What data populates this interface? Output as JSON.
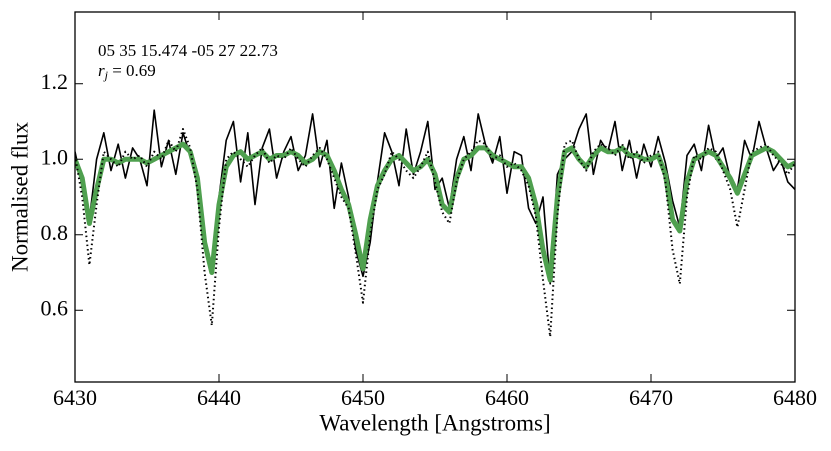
{
  "chart_data": {
    "type": "line",
    "xlabel": "Wavelength [Angstroms]",
    "ylabel": "Normalised flux",
    "annotations": [
      {
        "text": "05 35 15.474 -05 27 22.73"
      },
      {
        "symbol": "r",
        "subscript": "j",
        "text": " = 0.69"
      }
    ],
    "xlim": [
      6430,
      6480
    ],
    "ylim": [
      0.41,
      1.39
    ],
    "xticks": [
      6430,
      6440,
      6450,
      6460,
      6470,
      6480
    ],
    "yticks": [
      0.6,
      0.8,
      {
        "value": 1,
        "label": "1.0"
      },
      1.2
    ],
    "grid": false,
    "x": [
      6430,
      6430.5,
      6431,
      6431.5,
      6432,
      6432.5,
      6433,
      6433.5,
      6434,
      6434.5,
      6435,
      6435.5,
      6436,
      6436.5,
      6437,
      6437.5,
      6438,
      6438.5,
      6439,
      6439.5,
      6440,
      6440.5,
      6441,
      6441.5,
      6442,
      6442.5,
      6443,
      6443.5,
      6444,
      6444.5,
      6445,
      6445.5,
      6446,
      6446.5,
      6447,
      6447.5,
      6448,
      6448.5,
      6449,
      6449.5,
      6450,
      6450.5,
      6451,
      6451.5,
      6452,
      6452.5,
      6453,
      6453.5,
      6454,
      6454.5,
      6455,
      6455.5,
      6456,
      6456.5,
      6457,
      6457.5,
      6458,
      6458.5,
      6459,
      6459.5,
      6460,
      6460.5,
      6461,
      6461.5,
      6462,
      6462.5,
      6463,
      6463.5,
      6464,
      6464.5,
      6465,
      6465.5,
      6466,
      6466.5,
      6467,
      6467.5,
      6468,
      6468.5,
      6469,
      6469.5,
      6470,
      6470.5,
      6471,
      6471.5,
      6472,
      6472.5,
      6473,
      6473.5,
      6474,
      6474.5,
      6475,
      6475.5,
      6476,
      6476.5,
      6477,
      6477.5,
      6478,
      6478.5,
      6479,
      6479.5,
      6480
    ],
    "series": [
      {
        "color": "#000000",
        "width": 1.6,
        "dash": "solid",
        "values": [
          1.02,
          0.93,
          0.84,
          1.0,
          1.07,
          0.97,
          1.04,
          0.95,
          1.03,
          1.0,
          0.93,
          1.13,
          0.98,
          1.05,
          0.96,
          1.07,
          1.01,
          0.93,
          0.8,
          0.7,
          0.9,
          1.05,
          1.1,
          0.94,
          1.07,
          0.88,
          1.03,
          1.08,
          0.95,
          1.02,
          1.06,
          0.97,
          1.01,
          1.12,
          0.98,
          1.05,
          0.87,
          0.99,
          0.9,
          0.76,
          0.69,
          0.78,
          0.94,
          1.07,
          1.02,
          0.93,
          1.08,
          0.96,
          1.02,
          1.1,
          0.92,
          0.95,
          0.87,
          1.0,
          1.06,
          0.97,
          1.12,
          1.04,
          0.99,
          1.06,
          0.91,
          1.02,
          1.01,
          0.87,
          0.83,
          0.9,
          0.67,
          0.96,
          1.0,
          1.02,
          1.08,
          1.12,
          0.96,
          1.05,
          1.02,
          1.1,
          0.97,
          1.05,
          0.95,
          1.04,
          0.98,
          1.06,
          0.99,
          0.89,
          0.82,
          1.01,
          1.04,
          0.97,
          1.09,
          1.0,
          1.03,
          0.95,
          0.92,
          1.05,
          1.0,
          1.1,
          1.03,
          0.97,
          1.0,
          0.94,
          0.92
        ]
      },
      {
        "color": "#4fa04f",
        "width": 5,
        "dash": "solid",
        "values": [
          1.0,
          0.95,
          0.83,
          0.92,
          1.0,
          1.0,
          0.99,
          1.0,
          1.0,
          1.0,
          0.99,
          1.0,
          1.01,
          1.02,
          1.03,
          1.04,
          1.02,
          0.95,
          0.78,
          0.7,
          0.88,
          0.98,
          1.01,
          1.02,
          1.0,
          1.01,
          1.02,
          1.0,
          1.01,
          1.01,
          1.02,
          1.01,
          0.99,
          1.0,
          1.02,
          1.01,
          0.97,
          0.92,
          0.88,
          0.8,
          0.71,
          0.84,
          0.93,
          0.97,
          1.0,
          1.01,
          0.99,
          0.97,
          0.98,
          1.0,
          0.96,
          0.88,
          0.86,
          0.95,
          1.0,
          1.01,
          1.03,
          1.03,
          1.01,
          1.0,
          0.99,
          0.98,
          0.98,
          0.95,
          0.88,
          0.76,
          0.68,
          0.9,
          1.02,
          1.03,
          1.0,
          0.98,
          1.01,
          1.03,
          1.02,
          1.02,
          1.03,
          1.01,
          1.01,
          1.0,
          1.0,
          1.01,
          0.96,
          0.84,
          0.81,
          0.94,
          1.0,
          1.01,
          1.02,
          1.01,
          0.98,
          0.95,
          0.91,
          0.96,
          1.01,
          1.02,
          1.03,
          1.02,
          1.0,
          0.98,
          0.99
        ]
      },
      {
        "color": "#000000",
        "width": 2,
        "dash": "dotted",
        "values": [
          1.01,
          0.9,
          0.72,
          0.88,
          1.02,
          1.0,
          0.98,
          1.02,
          1.0,
          1.01,
          0.98,
          1.02,
          1.0,
          1.05,
          1.02,
          1.08,
          1.03,
          0.92,
          0.7,
          0.56,
          0.82,
          1.0,
          1.02,
          1.0,
          0.98,
          1.01,
          1.03,
          0.99,
          1.01,
          1.0,
          1.03,
          1.0,
          0.98,
          1.01,
          1.03,
          1.0,
          0.95,
          0.9,
          0.87,
          0.75,
          0.62,
          0.8,
          0.92,
          0.96,
          1.02,
          1.0,
          0.97,
          0.95,
          0.98,
          1.02,
          0.94,
          0.86,
          0.83,
          0.94,
          1.0,
          1.02,
          1.05,
          1.04,
          1.0,
          1.01,
          0.98,
          0.99,
          0.97,
          0.93,
          0.85,
          0.68,
          0.53,
          0.85,
          1.04,
          1.05,
          1.0,
          0.97,
          1.02,
          1.04,
          1.03,
          1.01,
          1.04,
          1.0,
          1.02,
          0.99,
          1.01,
          1.02,
          0.94,
          0.76,
          0.67,
          0.9,
          1.01,
          1.0,
          1.03,
          1.02,
          0.97,
          0.92,
          0.82,
          0.92,
          1.02,
          1.03,
          1.04,
          1.01,
          0.99,
          0.96,
          0.99
        ]
      }
    ]
  }
}
